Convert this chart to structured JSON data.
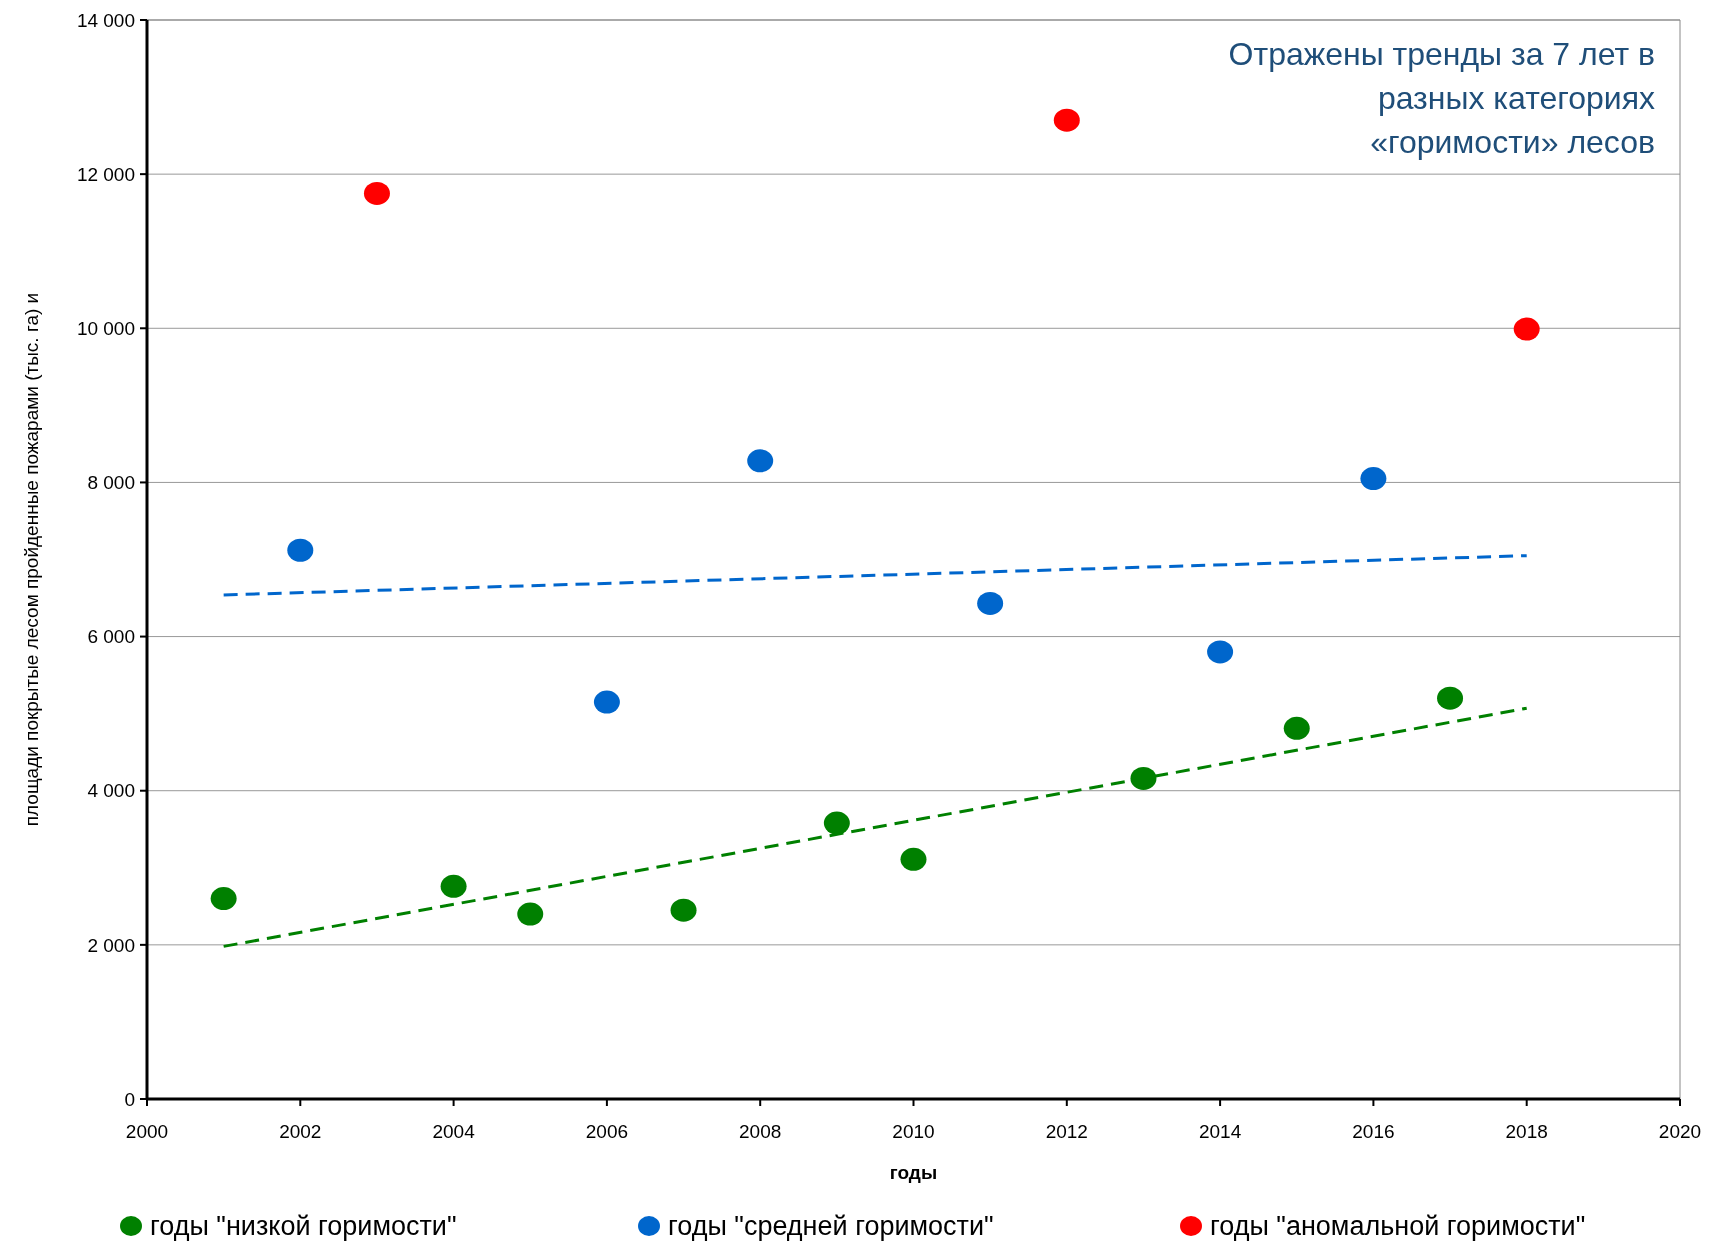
{
  "chart_data": {
    "type": "scatter",
    "xlabel": "годы",
    "ylabel": "площади покрытые лесом пройденные пожарами (тыс. га) и",
    "annotations": [
      "Отражены тренды за 7 лет в разных категориях «горимости» лесов"
    ],
    "xlim": [
      2000,
      2020
    ],
    "xticks": [
      2000,
      2002,
      2004,
      2006,
      2008,
      2010,
      2012,
      2014,
      2016,
      2018,
      2020
    ],
    "ylim": [
      0,
      14000
    ],
    "yticks": [
      0,
      {
        "value": 2000,
        "label": "2 000"
      },
      {
        "value": 4000,
        "label": "4 000"
      },
      {
        "value": 6000,
        "label": "6 000"
      },
      {
        "value": 8000,
        "label": "8 000"
      },
      {
        "value": 10000,
        "label": "10 000"
      },
      {
        "value": 12000,
        "label": "12 000"
      },
      {
        "value": 14000,
        "label": "14 000"
      }
    ],
    "grid": "y",
    "legend": "bottom",
    "marker": "circle",
    "series": [
      {
        "name": "годы \"низкой горимости\"",
        "color": "#008000",
        "x": [
          2001,
          2004,
          2005,
          2007,
          2009,
          2010,
          2013,
          2015,
          2017
        ],
        "values": [
          2600,
          2760,
          2400,
          2450,
          3580,
          3110,
          4160,
          4810,
          5200
        ]
      },
      {
        "name": "годы \"средней горимости\"",
        "color": "#0066cc",
        "x": [
          2002,
          2006,
          2008,
          2011,
          2014,
          2016
        ],
        "values": [
          7120,
          5150,
          8280,
          6430,
          5800,
          8050
        ]
      },
      {
        "name": "годы \"аномальной горимости\"",
        "color": "#ff0000",
        "x": [
          2003,
          2012,
          2018
        ],
        "values": [
          11750,
          12700,
          9990
        ]
      },
      {
        "type": "line",
        "color": "#0066cc",
        "line_style": "dashed",
        "marker": "none",
        "x": [
          2001,
          2018
        ],
        "values": [
          6540,
          7050
        ]
      },
      {
        "type": "line",
        "color": "#008000",
        "line_style": "dashed",
        "marker": "none",
        "x": [
          2001,
          2018
        ],
        "values": [
          1980,
          5070
        ]
      }
    ]
  }
}
